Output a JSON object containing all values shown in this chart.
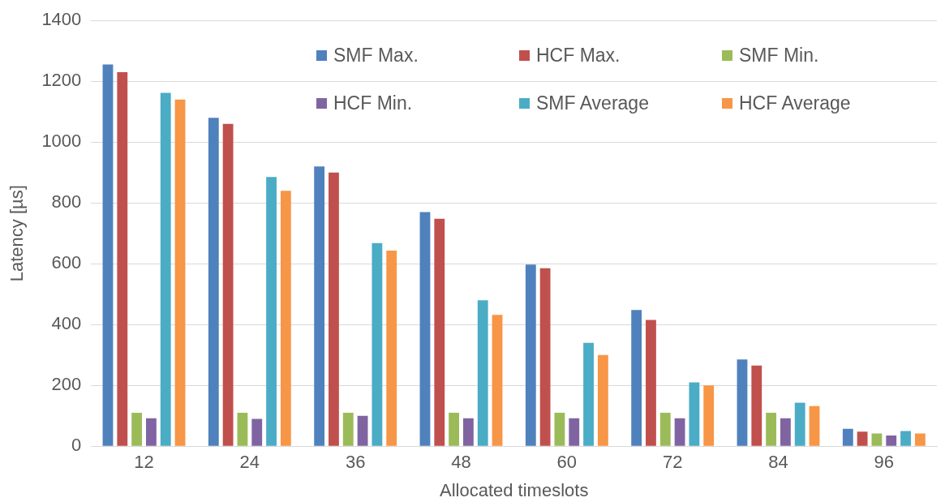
{
  "chart_data": {
    "type": "bar",
    "xlabel": "Allocated timeslots",
    "ylabel": "Latency [µs]",
    "categories": [
      "12",
      "24",
      "36",
      "48",
      "60",
      "72",
      "84",
      "96"
    ],
    "series": [
      {
        "name": "SMF Max.",
        "color": "#4f81bd",
        "values": [
          1255,
          1080,
          920,
          770,
          597,
          448,
          285,
          57
        ]
      },
      {
        "name": "HCF Max.",
        "color": "#c0504d",
        "values": [
          1230,
          1060,
          900,
          748,
          585,
          415,
          265,
          48
        ]
      },
      {
        "name": "SMF Min.",
        "color": "#9bbb59",
        "values": [
          110,
          110,
          110,
          110,
          110,
          110,
          110,
          42
        ]
      },
      {
        "name": "HCF Min.",
        "color": "#8064a2",
        "values": [
          92,
          90,
          100,
          92,
          92,
          92,
          92,
          35
        ]
      },
      {
        "name": "SMF Average",
        "color": "#4bacc6",
        "values": [
          1162,
          885,
          668,
          480,
          340,
          210,
          143,
          50
        ]
      },
      {
        "name": "HCF Average",
        "color": "#f79646",
        "values": [
          1140,
          840,
          643,
          432,
          300,
          200,
          132,
          42
        ]
      }
    ],
    "ylim": [
      0,
      1400
    ],
    "yticks": [
      0,
      200,
      400,
      600,
      800,
      1000,
      1200,
      1400
    ],
    "grid": "y",
    "legend": "top right"
  }
}
